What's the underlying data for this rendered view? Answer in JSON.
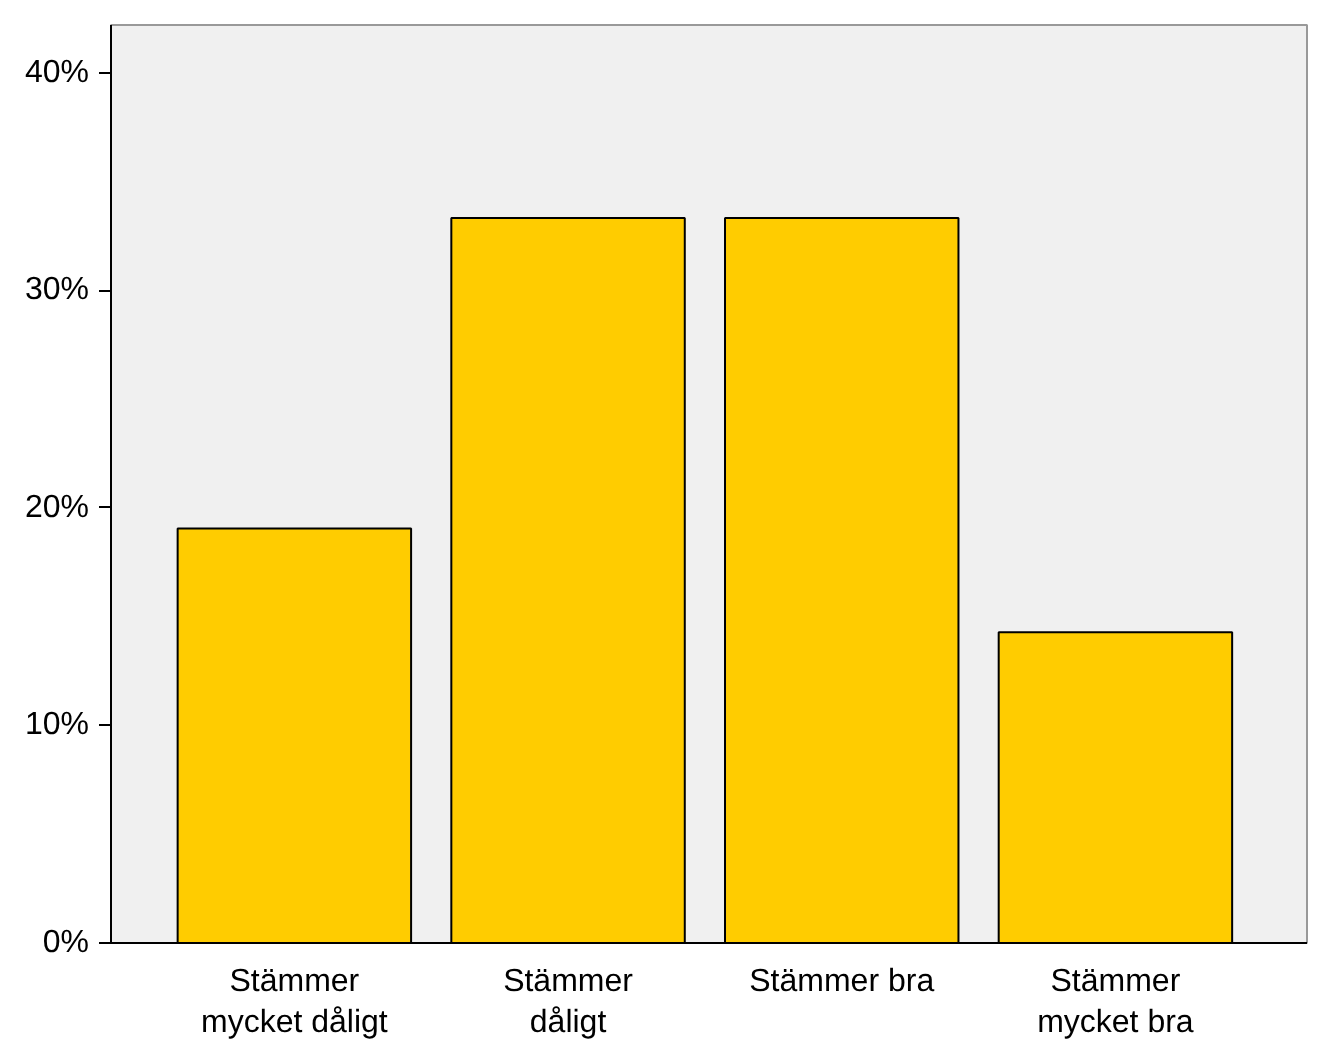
{
  "chart_data": {
    "type": "bar",
    "categories": [
      "Stämmer\nmycket dåligt",
      "Stämmer\ndåligt",
      "Stämmer bra",
      "Stämmer\nmycket bra"
    ],
    "values": [
      19.05,
      33.33,
      33.33,
      14.29
    ],
    "color": "#ffcc00",
    "ylim": [
      0,
      42.2
    ],
    "yticks": [
      {
        "value": 0,
        "label": "0%"
      },
      {
        "value": 10,
        "label": "10%"
      },
      {
        "value": 20,
        "label": "20%"
      },
      {
        "value": 30,
        "label": "30%"
      },
      {
        "value": 40,
        "label": "40%"
      }
    ],
    "grid": false
  }
}
